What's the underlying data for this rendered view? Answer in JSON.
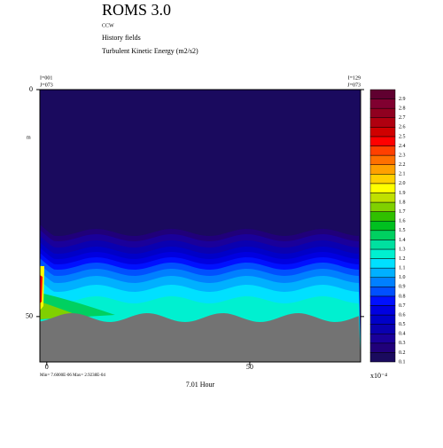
{
  "chart_data": {
    "type": "contour",
    "title": "ROMS 3.0",
    "subtitle": "CCW",
    "lines": [
      "History fields",
      "Turbulent Kinetic Energy (m2/s2)"
    ],
    "corner_left": [
      "I=001",
      "J=073"
    ],
    "corner_right": [
      "I=129",
      "J=073"
    ],
    "ylabel": "m",
    "xlabel": "7.01 Hour",
    "minmax": "Min= 7.6000E-06  Max= 2.9238E-04",
    "xlim": [
      -1.7,
      77.3
    ],
    "xticks": [
      0,
      50
    ],
    "ylim": [
      0,
      60
    ],
    "yticks": [
      0,
      50
    ],
    "y_inverted": true,
    "colorbar_label": "x10⁻⁴",
    "levels": [
      0.1,
      0.2,
      0.3,
      0.4,
      0.5,
      0.6,
      0.7,
      0.8,
      0.9,
      {
        "value": 1,
        "label": "1.0"
      },
      1.1,
      1.2,
      1.3,
      1.4,
      1.5,
      1.6,
      1.7,
      1.8,
      1.9,
      {
        "value": 2,
        "label": "2.0"
      },
      2.1,
      2.2,
      2.3,
      2.4,
      2.5,
      2.6,
      2.7,
      2.8,
      2.9
    ],
    "colors": [
      "#1a0a5e",
      "#20007a",
      "#1a009a",
      "#0a00b0",
      "#0000c8",
      "#0000e0",
      "#0010ff",
      "#0050ff",
      "#0080ff",
      "#00b0ff",
      "#00e0ff",
      "#00f0d0",
      "#00e0a0",
      "#00d060",
      "#00c020",
      "#30c000",
      "#80d000",
      "#c0e000",
      "#ffff00",
      "#ffd000",
      "#ffa000",
      "#ff7000",
      "#ff4000",
      "#ff0000",
      "#d00000",
      "#b00010",
      "#900020",
      "#800030",
      "#600030"
    ]
  }
}
